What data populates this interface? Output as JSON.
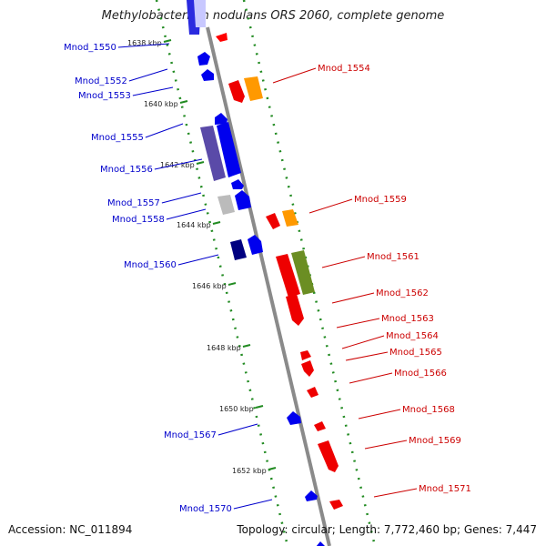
{
  "title": "Methylobacterium nodulans ORS 2060, complete genome",
  "accession": "Accession: NC_011894",
  "topology": "Topology: circular; Length: 7,772,460 bp; Genes: 7,447",
  "colors": {
    "forward": "#ff0000",
    "reverse": "#0000ff",
    "backbone": "#8a8a8a",
    "tick": "#228b22"
  },
  "kbp_labels": [
    "1638 kbp",
    "1640 kbp",
    "1642 kbp",
    "1644 kbp",
    "1646 kbp",
    "1648 kbp",
    "1650 kbp",
    "1652 kbp"
  ],
  "left_genes": [
    "Mnod_1550",
    "Mnod_1552",
    "Mnod_1553",
    "Mnod_1555",
    "Mnod_1556",
    "Mnod_1557",
    "Mnod_1558",
    "Mnod_1560",
    "Mnod_1567",
    "Mnod_1570"
  ],
  "right_genes": [
    "Mnod_1554",
    "Mnod_1559",
    "Mnod_1561",
    "Mnod_1562",
    "Mnod_1563",
    "Mnod_1564",
    "Mnod_1565",
    "Mnod_1566",
    "Mnod_1568",
    "Mnod_1569",
    "Mnod_1571"
  ]
}
